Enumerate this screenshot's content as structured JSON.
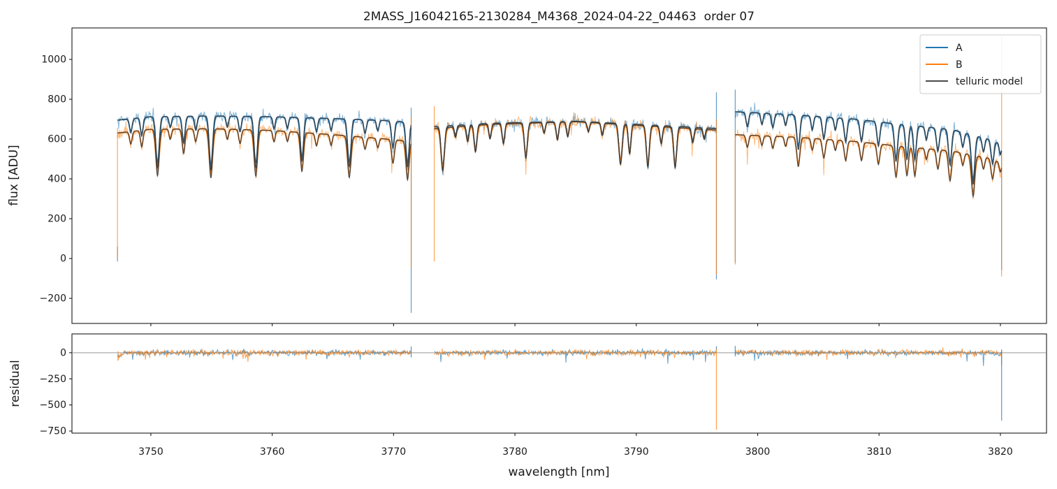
{
  "figure": {
    "title": "2MASS_J16042165-2130284_M4368_2024-04-22_04463  order 07",
    "background": "#ffffff",
    "colors": {
      "A": "#1f77b4",
      "B": "#ff7f0e",
      "telluric_model": "#3b3b3b",
      "spine": "#1a1a1a",
      "zero_line": "#888888"
    }
  },
  "chart_data": [
    {
      "type": "line",
      "panel": "flux",
      "ylabel": "flux [ADU]",
      "xlim": [
        3743.5,
        3823.8
      ],
      "ylim": [
        -326,
        1158
      ],
      "yticks": [
        -200,
        0,
        200,
        400,
        600,
        800,
        1000
      ],
      "xticks": [
        3750,
        3760,
        3770,
        3780,
        3790,
        3800,
        3810,
        3820
      ],
      "x_tick_labels_visible": false,
      "grid": false,
      "legend": {
        "position": "upper right",
        "entries": [
          {
            "label": "A",
            "color": "#1f77b4"
          },
          {
            "label": "B",
            "color": "#ff7f0e"
          },
          {
            "label": "telluric model",
            "color": "#4a4a4a"
          }
        ]
      },
      "noise_sigma_adu": 12,
      "segments": [
        {
          "id": 1,
          "wave_range_nm": [
            3747.25,
            3771.45
          ],
          "continuum_A_adu": [
            [
              3747.25,
              695
            ],
            [
              3750,
              712
            ],
            [
              3755,
              716
            ],
            [
              3760,
              712
            ],
            [
              3765,
              703
            ],
            [
              3769,
              694
            ],
            [
              3771.45,
              683
            ]
          ],
          "continuum_B_adu": [
            [
              3747.25,
              630
            ],
            [
              3750,
              649
            ],
            [
              3755,
              652
            ],
            [
              3760,
              643
            ],
            [
              3765,
              622
            ],
            [
              3769,
              602
            ],
            [
              3771.45,
              588
            ]
          ],
          "telluric_lines": [
            [
              3748.35,
              0.1,
              0.1
            ],
            [
              3749.25,
              0.13,
              0.1
            ],
            [
              3750.55,
              0.36,
              0.13
            ],
            [
              3751.6,
              0.08,
              0.09
            ],
            [
              3752.7,
              0.19,
              0.11
            ],
            [
              3753.7,
              0.1,
              0.1
            ],
            [
              3754.95,
              0.38,
              0.13
            ],
            [
              3756.3,
              0.08,
              0.09
            ],
            [
              3757.35,
              0.11,
              0.1
            ],
            [
              3758.65,
              0.36,
              0.13
            ],
            [
              3760.15,
              0.09,
              0.09
            ],
            [
              3761.25,
              0.08,
              0.09
            ],
            [
              3762.45,
              0.31,
              0.12
            ],
            [
              3763.65,
              0.1,
              0.1
            ],
            [
              3764.85,
              0.09,
              0.09
            ],
            [
              3766.35,
              0.34,
              0.13
            ],
            [
              3767.65,
              0.1,
              0.1
            ],
            [
              3768.7,
              0.08,
              0.09
            ],
            [
              3769.95,
              0.2,
              0.11
            ],
            [
              3771.15,
              0.33,
              0.12
            ]
          ]
        },
        {
          "id": 2,
          "wave_range_nm": [
            3773.35,
            3796.6
          ],
          "continuum_A_adu": [
            [
              3773.35,
              662
            ],
            [
              3778,
              679
            ],
            [
              3785,
              689
            ],
            [
              3790,
              674
            ],
            [
              3796.6,
              653
            ]
          ],
          "continuum_B_adu": [
            [
              3773.35,
              652
            ],
            [
              3778,
              674
            ],
            [
              3785,
              687
            ],
            [
              3790,
              669
            ],
            [
              3796.6,
              645
            ]
          ],
          "telluric_lines": [
            [
              3774.05,
              0.33,
              0.13
            ],
            [
              3775.1,
              0.08,
              0.09
            ],
            [
              3776.1,
              0.12,
              0.1
            ],
            [
              3776.75,
              0.2,
              0.11
            ],
            [
              3777.95,
              0.11,
              0.1
            ],
            [
              3779.05,
              0.15,
              0.1
            ],
            [
              3780.9,
              0.26,
              0.12
            ],
            [
              3782.4,
              0.08,
              0.09
            ],
            [
              3783.5,
              0.13,
              0.1
            ],
            [
              3784.35,
              0.11,
              0.1
            ],
            [
              3786.05,
              0.07,
              0.09
            ],
            [
              3787.2,
              0.09,
              0.09
            ],
            [
              3788.7,
              0.3,
              0.13
            ],
            [
              3789.45,
              0.22,
              0.1
            ],
            [
              3790.95,
              0.31,
              0.12
            ],
            [
              3792.05,
              0.13,
              0.1
            ],
            [
              3793.2,
              0.31,
              0.12
            ],
            [
              3794.65,
              0.11,
              0.1
            ],
            [
              3795.6,
              0.08,
              0.09
            ]
          ]
        },
        {
          "id": 3,
          "wave_range_nm": [
            3798.15,
            3820.1
          ],
          "continuum_A_adu": [
            [
              3798.15,
              737
            ],
            [
              3803,
              722
            ],
            [
              3808,
              700
            ],
            [
              3812,
              672
            ],
            [
              3816,
              648
            ],
            [
              3819,
              600
            ],
            [
              3820.1,
              575
            ]
          ],
          "continuum_B_adu": [
            [
              3798.15,
              622
            ],
            [
              3803,
              610
            ],
            [
              3808,
              588
            ],
            [
              3812,
              562
            ],
            [
              3816,
              540
            ],
            [
              3819,
              505
            ],
            [
              3820.1,
              480
            ]
          ],
          "telluric_lines": [
            [
              3799.15,
              0.1,
              0.1
            ],
            [
              3800.35,
              0.08,
              0.09
            ],
            [
              3801.25,
              0.1,
              0.1
            ],
            [
              3802.3,
              0.08,
              0.09
            ],
            [
              3803.35,
              0.24,
              0.12
            ],
            [
              3804.5,
              0.1,
              0.09
            ],
            [
              3805.45,
              0.16,
              0.11
            ],
            [
              3806.4,
              0.09,
              0.09
            ],
            [
              3807.25,
              0.17,
              0.11
            ],
            [
              3808.55,
              0.16,
              0.11
            ],
            [
              3809.95,
              0.18,
              0.11
            ],
            [
              3811.4,
              0.28,
              0.12
            ],
            [
              3812.3,
              0.26,
              0.11
            ],
            [
              3812.95,
              0.26,
              0.11
            ],
            [
              3813.9,
              0.1,
              0.09
            ],
            [
              3814.85,
              0.18,
              0.11
            ],
            [
              3815.85,
              0.28,
              0.12
            ],
            [
              3816.9,
              0.12,
              0.1
            ],
            [
              3817.75,
              0.4,
              0.13
            ],
            [
              3818.6,
              0.12,
              0.1
            ],
            [
              3819.35,
              0.2,
              0.11
            ],
            [
              3820.0,
              0.1,
              0.09
            ]
          ]
        }
      ],
      "edge_spikes": [
        {
          "x": 3747.25,
          "series": "A",
          "y": [
            -15,
            60
          ]
        },
        {
          "x": 3747.25,
          "series": "B",
          "y": [
            0,
            655
          ]
        },
        {
          "x": 3771.45,
          "series": "A",
          "y": [
            -273,
            757
          ]
        },
        {
          "x": 3771.45,
          "series": "B",
          "y": [
            -50,
            712
          ]
        },
        {
          "x": 3773.35,
          "series": "B",
          "y": [
            -15,
            765
          ]
        },
        {
          "x": 3796.6,
          "series": "A",
          "y": [
            -105,
            835
          ]
        },
        {
          "x": 3796.6,
          "series": "B",
          "y": [
            -80,
            700
          ]
        },
        {
          "x": 3798.15,
          "series": "A",
          "y": [
            -20,
            848
          ]
        },
        {
          "x": 3798.15,
          "series": "B",
          "y": [
            -30,
            640
          ]
        },
        {
          "x": 3820.1,
          "series": "A",
          "y": [
            -60,
            520
          ]
        },
        {
          "x": 3820.1,
          "series": "B",
          "y": [
            -90,
            1116
          ]
        }
      ]
    },
    {
      "type": "line",
      "panel": "residual",
      "ylabel": "residual",
      "xlabel": "wavelength [nm]",
      "xlim": [
        3743.5,
        3823.8
      ],
      "ylim": [
        -770,
        180
      ],
      "yticks": [
        0,
        -250,
        -500,
        -750
      ],
      "xticks": [
        3750,
        3760,
        3770,
        3780,
        3790,
        3800,
        3810,
        3820
      ],
      "x_tick_labels_visible": true,
      "grid": false,
      "zero_line": true,
      "noise_sigma": 12,
      "spikes": [
        {
          "x": 3747.3,
          "series": "B",
          "y": [
            -70,
            15
          ]
        },
        {
          "x": 3771.45,
          "series": "A",
          "y": [
            -45,
            60
          ]
        },
        {
          "x": 3796.6,
          "series": "A",
          "y": [
            20,
            62
          ]
        },
        {
          "x": 3796.6,
          "series": "B",
          "y": [
            -737,
            40
          ]
        },
        {
          "x": 3798.15,
          "series": "A",
          "y": [
            -35,
            65
          ]
        },
        {
          "x": 3820.1,
          "series": "B",
          "y": [
            -120,
            25
          ]
        },
        {
          "x": 3820.1,
          "series": "A",
          "y": [
            -650,
            30
          ]
        }
      ]
    }
  ]
}
